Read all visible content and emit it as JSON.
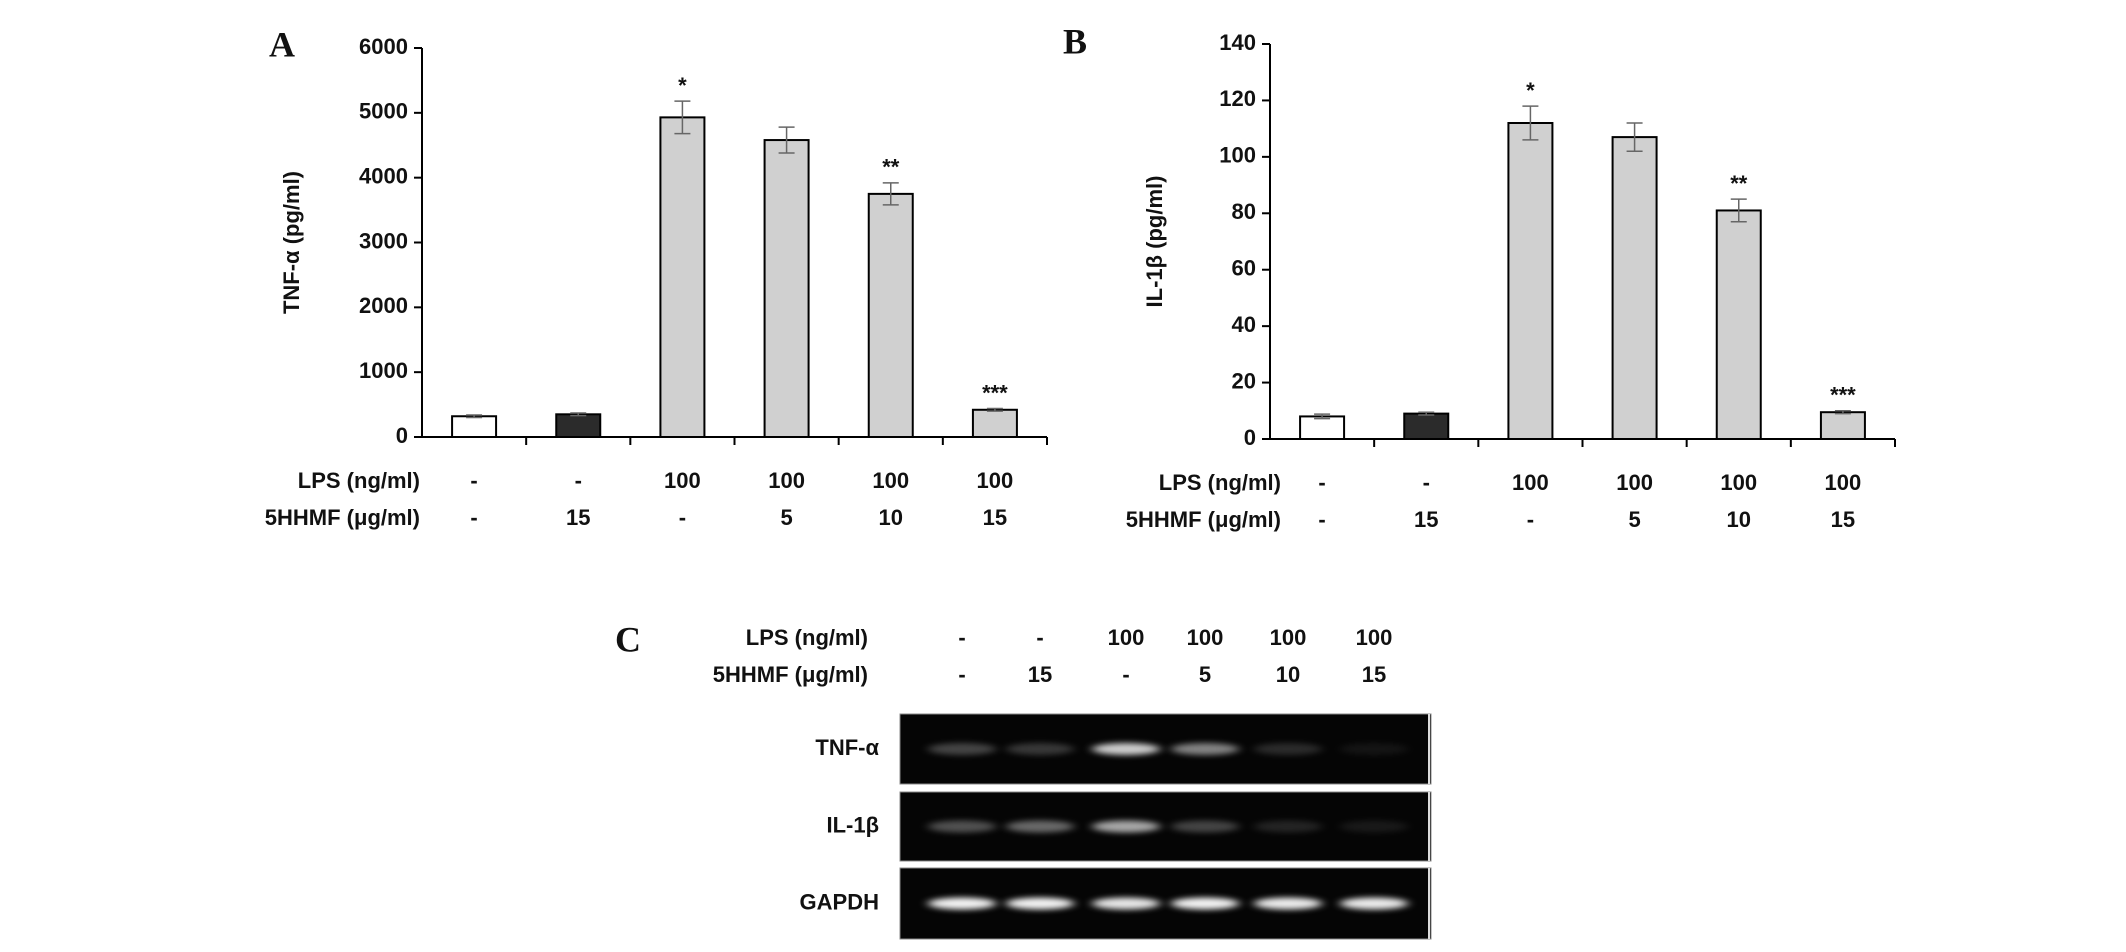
{
  "chart_data": [
    {
      "type": "bar",
      "panel": "A",
      "ylabel": "TNF-α (pg/ml)",
      "values": [
        320,
        350,
        4930,
        4580,
        3750,
        420
      ],
      "errors": [
        20,
        20,
        250,
        200,
        170,
        20
      ],
      "annotations": [
        null,
        null,
        "*",
        null,
        "**",
        "***"
      ],
      "colors": [
        "#ffffff",
        "#2b2b2b",
        "#d0d0d0",
        "#d0d0d0",
        "#d0d0d0",
        "#d0d0d0"
      ],
      "ylim": [
        0,
        6000
      ],
      "yticks": [
        0,
        1000,
        2000,
        3000,
        4000,
        5000,
        6000
      ],
      "conditions": [
        {
          "label": "LPS (ng/ml)",
          "values": [
            "-",
            "-",
            "100",
            "100",
            "100",
            "100"
          ]
        },
        {
          "label": "5HHMF (μg/ml)",
          "values": [
            "-",
            "15",
            "-",
            "5",
            "10",
            "15"
          ]
        }
      ]
    },
    {
      "type": "bar",
      "panel": "B",
      "ylabel": "IL-1β (pg/ml)",
      "values": [
        8,
        9,
        112,
        107,
        81,
        9.5
      ],
      "errors": [
        0.8,
        0.5,
        6,
        5,
        4,
        0.5
      ],
      "annotations": [
        null,
        null,
        "*",
        null,
        "**",
        "***"
      ],
      "colors": [
        "#ffffff",
        "#2b2b2b",
        "#d0d0d0",
        "#d0d0d0",
        "#d0d0d0",
        "#d0d0d0"
      ],
      "ylim": [
        0,
        140
      ],
      "yticks": [
        0,
        20,
        40,
        60,
        80,
        100,
        120,
        140
      ],
      "conditions": [
        {
          "label": "LPS (ng/ml)",
          "values": [
            "-",
            "-",
            "100",
            "100",
            "100",
            "100"
          ]
        },
        {
          "label": "5HHMF (μg/ml)",
          "values": [
            "-",
            "15",
            "-",
            "5",
            "10",
            "15"
          ]
        }
      ]
    }
  ],
  "gel": {
    "panel": "C",
    "conditions": [
      {
        "label": "LPS (ng/ml)",
        "values": [
          "-",
          "-",
          "100",
          "100",
          "100",
          "100"
        ]
      },
      {
        "label": "5HHMF (μg/ml)",
        "values": [
          "-",
          "15",
          "-",
          "5",
          "10",
          "15"
        ]
      }
    ],
    "rows": [
      "TNF-α",
      "IL-1β",
      "GAPDH"
    ]
  }
}
